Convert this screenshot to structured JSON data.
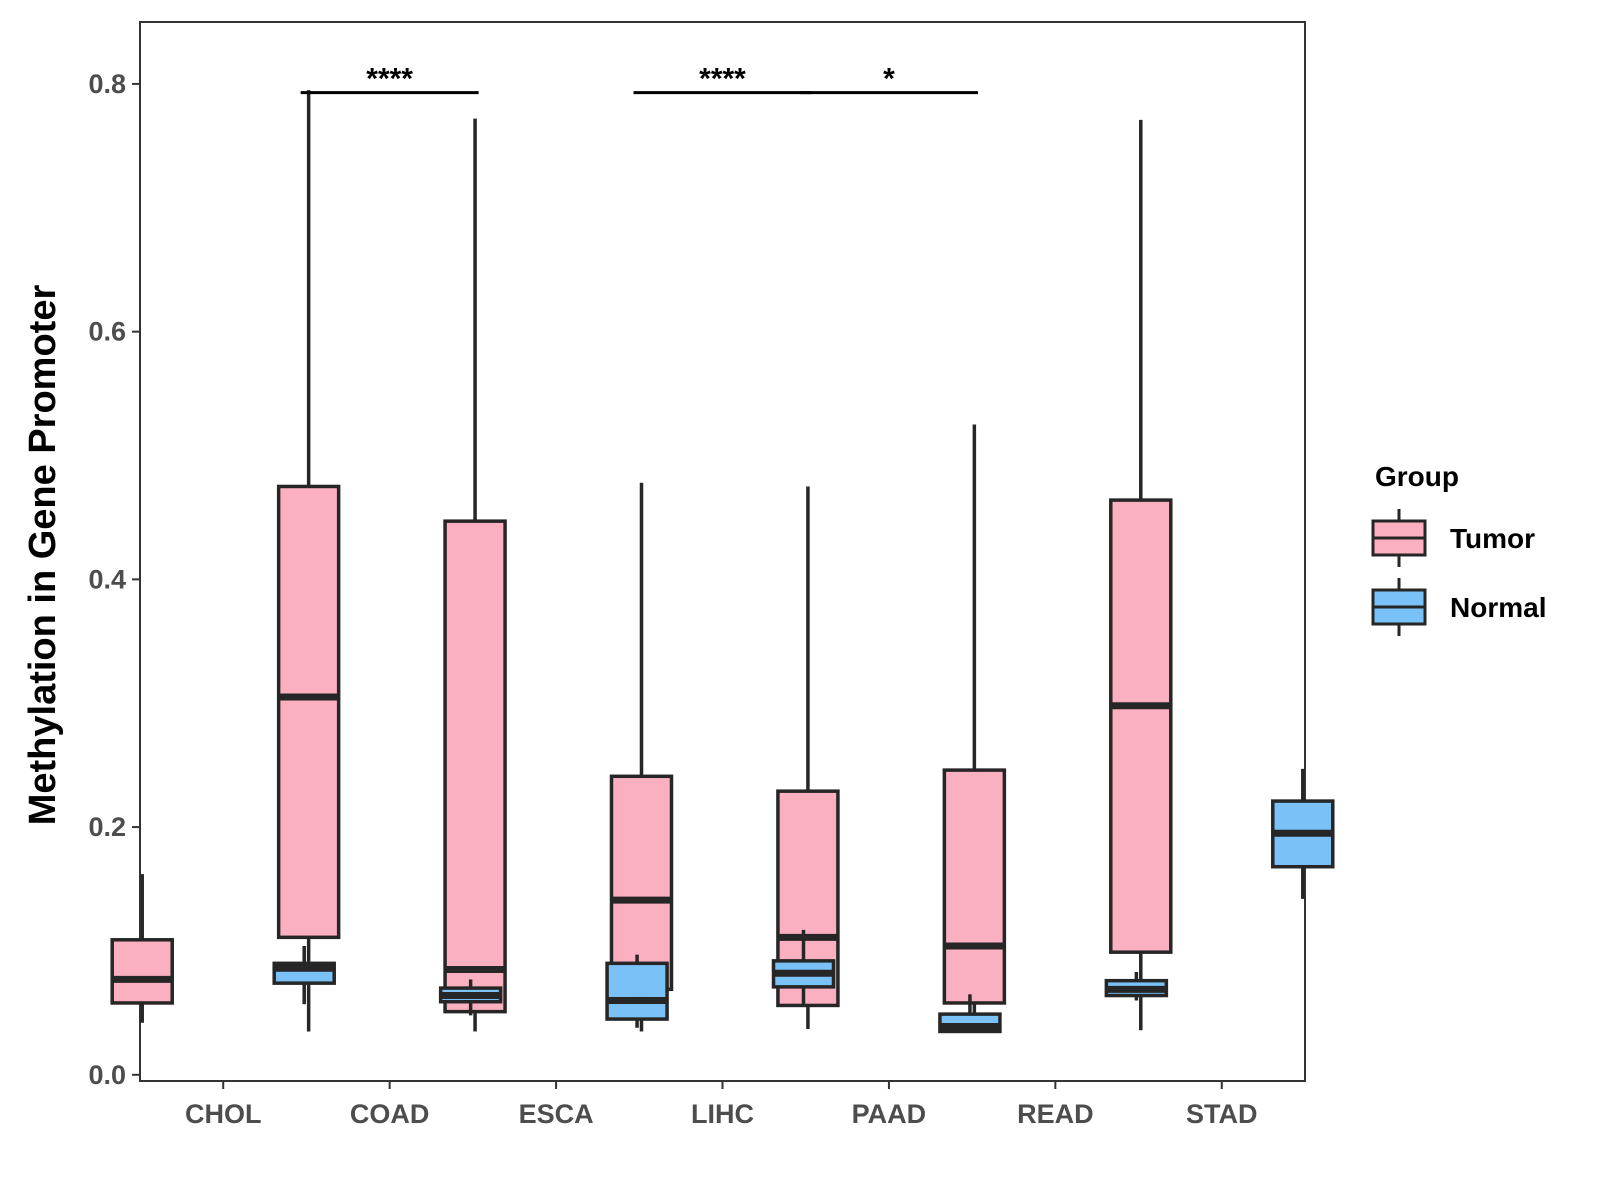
{
  "chart_data": {
    "type": "boxplot",
    "title": "",
    "xlabel": "",
    "ylabel": "Methylation in Gene Promoter",
    "ylim": [
      -0.005,
      0.85
    ],
    "yticks": [
      0.0,
      0.2,
      0.4,
      0.6,
      0.8
    ],
    "ytick_labels": [
      "0.0",
      "0.2",
      "0.4",
      "0.6",
      "0.8"
    ],
    "categories": [
      "CHOL",
      "COAD",
      "ESCA",
      "LIHC",
      "PAAD",
      "READ",
      "STAD"
    ],
    "legend": {
      "title": "Group",
      "position": "right",
      "entries": [
        "Tumor",
        "Normal"
      ]
    },
    "colors": {
      "Tumor": "#fbb0c2",
      "Normal": "#79c1f7",
      "stroke": "#262626"
    },
    "series": [
      {
        "name": "Tumor",
        "boxes": [
          {
            "category": "CHOL",
            "min": 0.042,
            "q1": 0.058,
            "median": 0.077,
            "q3": 0.109,
            "max": 0.162
          },
          {
            "category": "COAD",
            "min": 0.035,
            "q1": 0.111,
            "median": 0.305,
            "q3": 0.475,
            "max": 0.795
          },
          {
            "category": "ESCA",
            "min": 0.035,
            "q1": 0.051,
            "median": 0.085,
            "q3": 0.447,
            "max": 0.772
          },
          {
            "category": "LIHC",
            "min": 0.035,
            "q1": 0.069,
            "median": 0.141,
            "q3": 0.241,
            "max": 0.478
          },
          {
            "category": "PAAD",
            "min": 0.037,
            "q1": 0.056,
            "median": 0.111,
            "q3": 0.229,
            "max": 0.475
          },
          {
            "category": "READ",
            "min": 0.036,
            "q1": 0.058,
            "median": 0.104,
            "q3": 0.246,
            "max": 0.525
          },
          {
            "category": "STAD",
            "min": 0.036,
            "q1": 0.099,
            "median": 0.298,
            "q3": 0.464,
            "max": 0.771
          }
        ]
      },
      {
        "name": "Normal",
        "boxes": [
          {
            "category": "CHOL",
            "min": 0.057,
            "q1": 0.074,
            "median": 0.086,
            "q3": 0.09,
            "max": 0.104
          },
          {
            "category": "COAD",
            "min": 0.048,
            "q1": 0.059,
            "median": 0.064,
            "q3": 0.07,
            "max": 0.077
          },
          {
            "category": "ESCA",
            "min": 0.038,
            "q1": 0.045,
            "median": 0.06,
            "q3": 0.09,
            "max": 0.097
          },
          {
            "category": "LIHC",
            "min": 0.056,
            "q1": 0.071,
            "median": 0.082,
            "q3": 0.092,
            "max": 0.117
          },
          {
            "category": "PAAD",
            "min": 0.034,
            "q1": 0.035,
            "median": 0.039,
            "q3": 0.049,
            "max": 0.065
          },
          {
            "category": "READ",
            "min": 0.06,
            "q1": 0.064,
            "median": 0.069,
            "q3": 0.076,
            "max": 0.083
          },
          {
            "category": "STAD",
            "min": 0.142,
            "q1": 0.168,
            "median": 0.195,
            "q3": 0.221,
            "max": 0.247
          }
        ]
      }
    ],
    "annotations": [
      {
        "category": "COAD",
        "label": "****",
        "y": 0.793
      },
      {
        "category": "LIHC",
        "label": "****",
        "y": 0.793
      },
      {
        "category": "PAAD",
        "label": "*",
        "y": 0.793
      }
    ]
  }
}
